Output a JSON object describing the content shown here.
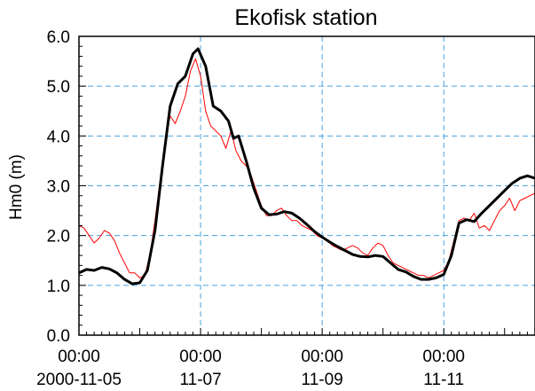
{
  "chart_data": {
    "type": "line",
    "title": "Ekofisk station",
    "ylabel": "Hm0 (m)",
    "xlabel": "",
    "ylim": [
      0,
      6
    ],
    "xlim": [
      "2000-11-05 00:00",
      "2000-11-12 12:00"
    ],
    "y_ticks": [
      "0.0",
      "1.0",
      "2.0",
      "3.0",
      "4.0",
      "5.0",
      "6.0"
    ],
    "x_ticks": [
      {
        "time": "2000-11-05 00:00",
        "line1": "00:00",
        "line2": "2000-11-05"
      },
      {
        "time": "2000-11-07 00:00",
        "line1": "00:00",
        "line2": "11-07"
      },
      {
        "time": "2000-11-09 00:00",
        "line1": "00:00",
        "line2": "11-09"
      },
      {
        "time": "2000-11-11 00:00",
        "line1": "00:00",
        "line2": "11-11"
      }
    ],
    "grid": true,
    "grid_color": "#4aa3df",
    "series": [
      {
        "color": "#ff0000",
        "points": [
          [
            "2000-11-05 00:00",
            2.2
          ],
          [
            "2000-11-05 02:00",
            2.15
          ],
          [
            "2000-11-05 04:00",
            2.0
          ],
          [
            "2000-11-05 06:00",
            1.85
          ],
          [
            "2000-11-05 08:00",
            1.95
          ],
          [
            "2000-11-05 10:00",
            2.1
          ],
          [
            "2000-11-05 12:00",
            2.05
          ],
          [
            "2000-11-05 14:00",
            1.9
          ],
          [
            "2000-11-05 16:00",
            1.65
          ],
          [
            "2000-11-05 18:00",
            1.45
          ],
          [
            "2000-11-05 20:00",
            1.25
          ],
          [
            "2000-11-05 22:00",
            1.25
          ],
          [
            "2000-11-06 00:00",
            1.15
          ],
          [
            "2000-11-06 02:00",
            1.2
          ],
          [
            "2000-11-06 04:00",
            1.6
          ],
          [
            "2000-11-06 06:00",
            2.3
          ],
          [
            "2000-11-06 08:00",
            3.1
          ],
          [
            "2000-11-06 10:00",
            3.9
          ],
          [
            "2000-11-06 12:00",
            4.4
          ],
          [
            "2000-11-06 14:00",
            4.25
          ],
          [
            "2000-11-06 16:00",
            4.5
          ],
          [
            "2000-11-06 18:00",
            4.8
          ],
          [
            "2000-11-06 20:00",
            5.3
          ],
          [
            "2000-11-06 22:00",
            5.55
          ],
          [
            "2000-11-07 00:00",
            5.2
          ],
          [
            "2000-11-07 02:00",
            4.5
          ],
          [
            "2000-11-07 04:00",
            4.2
          ],
          [
            "2000-11-07 06:00",
            4.1
          ],
          [
            "2000-11-07 08:00",
            4.0
          ],
          [
            "2000-11-07 10:00",
            3.75
          ],
          [
            "2000-11-07 12:00",
            4.1
          ],
          [
            "2000-11-07 14:00",
            3.7
          ],
          [
            "2000-11-07 16:00",
            3.5
          ],
          [
            "2000-11-07 18:00",
            3.4
          ],
          [
            "2000-11-07 20:00",
            3.2
          ],
          [
            "2000-11-07 22:00",
            2.9
          ],
          [
            "2000-11-08 00:00",
            2.6
          ],
          [
            "2000-11-08 02:00",
            2.4
          ],
          [
            "2000-11-08 04:00",
            2.4
          ],
          [
            "2000-11-08 06:00",
            2.5
          ],
          [
            "2000-11-08 08:00",
            2.55
          ],
          [
            "2000-11-08 10:00",
            2.4
          ],
          [
            "2000-11-08 12:00",
            2.3
          ],
          [
            "2000-11-08 14:00",
            2.3
          ],
          [
            "2000-11-08 16:00",
            2.2
          ],
          [
            "2000-11-08 18:00",
            2.15
          ],
          [
            "2000-11-08 20:00",
            2.1
          ],
          [
            "2000-11-08 22:00",
            2.0
          ],
          [
            "2000-11-09 00:00",
            1.95
          ],
          [
            "2000-11-09 02:00",
            1.9
          ],
          [
            "2000-11-09 04:00",
            1.8
          ],
          [
            "2000-11-09 06:00",
            1.75
          ],
          [
            "2000-11-09 08:00",
            1.7
          ],
          [
            "2000-11-09 10:00",
            1.75
          ],
          [
            "2000-11-09 12:00",
            1.8
          ],
          [
            "2000-11-09 14:00",
            1.75
          ],
          [
            "2000-11-09 16:00",
            1.65
          ],
          [
            "2000-11-09 18:00",
            1.6
          ],
          [
            "2000-11-09 20:00",
            1.75
          ],
          [
            "2000-11-09 22:00",
            1.85
          ],
          [
            "2000-11-10 00:00",
            1.8
          ],
          [
            "2000-11-10 02:00",
            1.6
          ],
          [
            "2000-11-10 04:00",
            1.45
          ],
          [
            "2000-11-10 06:00",
            1.4
          ],
          [
            "2000-11-10 08:00",
            1.35
          ],
          [
            "2000-11-10 10:00",
            1.3
          ],
          [
            "2000-11-10 12:00",
            1.25
          ],
          [
            "2000-11-10 14:00",
            1.2
          ],
          [
            "2000-11-10 16:00",
            1.2
          ],
          [
            "2000-11-10 18:00",
            1.15
          ],
          [
            "2000-11-10 20:00",
            1.2
          ],
          [
            "2000-11-10 22:00",
            1.25
          ],
          [
            "2000-11-11 00:00",
            1.3
          ],
          [
            "2000-11-11 02:00",
            1.5
          ],
          [
            "2000-11-11 04:00",
            1.9
          ],
          [
            "2000-11-11 06:00",
            2.3
          ],
          [
            "2000-11-11 08:00",
            2.35
          ],
          [
            "2000-11-11 10:00",
            2.3
          ],
          [
            "2000-11-11 12:00",
            2.45
          ],
          [
            "2000-11-11 14:00",
            2.15
          ],
          [
            "2000-11-11 16:00",
            2.2
          ],
          [
            "2000-11-11 18:00",
            2.1
          ],
          [
            "2000-11-11 20:00",
            2.3
          ],
          [
            "2000-11-11 22:00",
            2.5
          ],
          [
            "2000-11-12 00:00",
            2.6
          ],
          [
            "2000-11-12 02:00",
            2.75
          ],
          [
            "2000-11-12 04:00",
            2.5
          ],
          [
            "2000-11-12 06:00",
            2.7
          ],
          [
            "2000-11-12 08:00",
            2.75
          ],
          [
            "2000-11-12 10:00",
            2.8
          ],
          [
            "2000-11-12 12:00",
            2.85
          ]
        ]
      },
      {
        "color": "#000000",
        "points": [
          [
            "2000-11-05 00:00",
            1.25
          ],
          [
            "2000-11-05 03:00",
            1.32
          ],
          [
            "2000-11-05 06:00",
            1.3
          ],
          [
            "2000-11-05 09:00",
            1.36
          ],
          [
            "2000-11-05 12:00",
            1.33
          ],
          [
            "2000-11-05 15:00",
            1.25
          ],
          [
            "2000-11-05 18:00",
            1.12
          ],
          [
            "2000-11-05 21:00",
            1.03
          ],
          [
            "2000-11-06 00:00",
            1.05
          ],
          [
            "2000-11-06 03:00",
            1.3
          ],
          [
            "2000-11-06 06:00",
            2.1
          ],
          [
            "2000-11-06 09:00",
            3.4
          ],
          [
            "2000-11-06 12:00",
            4.6
          ],
          [
            "2000-11-06 15:00",
            5.05
          ],
          [
            "2000-11-06 18:00",
            5.2
          ],
          [
            "2000-11-06 21:00",
            5.65
          ],
          [
            "2000-11-06 23:00",
            5.75
          ],
          [
            "2000-11-07 02:00",
            5.4
          ],
          [
            "2000-11-07 05:00",
            4.6
          ],
          [
            "2000-11-07 08:00",
            4.5
          ],
          [
            "2000-11-07 11:00",
            4.3
          ],
          [
            "2000-11-07 13:00",
            3.95
          ],
          [
            "2000-11-07 15:00",
            4.0
          ],
          [
            "2000-11-07 18:00",
            3.5
          ],
          [
            "2000-11-07 21:00",
            2.95
          ],
          [
            "2000-11-08 00:00",
            2.55
          ],
          [
            "2000-11-08 03:00",
            2.42
          ],
          [
            "2000-11-08 06:00",
            2.43
          ],
          [
            "2000-11-08 09:00",
            2.48
          ],
          [
            "2000-11-08 12:00",
            2.45
          ],
          [
            "2000-11-08 15:00",
            2.35
          ],
          [
            "2000-11-08 18:00",
            2.22
          ],
          [
            "2000-11-08 21:00",
            2.08
          ],
          [
            "2000-11-09 00:00",
            1.97
          ],
          [
            "2000-11-09 03:00",
            1.87
          ],
          [
            "2000-11-09 06:00",
            1.78
          ],
          [
            "2000-11-09 09:00",
            1.7
          ],
          [
            "2000-11-09 12:00",
            1.62
          ],
          [
            "2000-11-09 15:00",
            1.58
          ],
          [
            "2000-11-09 18:00",
            1.57
          ],
          [
            "2000-11-09 21:00",
            1.6
          ],
          [
            "2000-11-10 00:00",
            1.58
          ],
          [
            "2000-11-10 03:00",
            1.45
          ],
          [
            "2000-11-10 06:00",
            1.32
          ],
          [
            "2000-11-10 09:00",
            1.27
          ],
          [
            "2000-11-10 12:00",
            1.18
          ],
          [
            "2000-11-10 15:00",
            1.12
          ],
          [
            "2000-11-10 18:00",
            1.12
          ],
          [
            "2000-11-10 21:00",
            1.15
          ],
          [
            "2000-11-11 00:00",
            1.22
          ],
          [
            "2000-11-11 03:00",
            1.6
          ],
          [
            "2000-11-11 06:00",
            2.25
          ],
          [
            "2000-11-11 09:00",
            2.32
          ],
          [
            "2000-11-11 12:00",
            2.28
          ],
          [
            "2000-11-11 15:00",
            2.45
          ],
          [
            "2000-11-11 18:00",
            2.6
          ],
          [
            "2000-11-11 21:00",
            2.75
          ],
          [
            "2000-11-12 00:00",
            2.9
          ],
          [
            "2000-11-12 03:00",
            3.05
          ],
          [
            "2000-11-12 06:00",
            3.15
          ],
          [
            "2000-11-12 09:00",
            3.2
          ],
          [
            "2000-11-12 12:00",
            3.15
          ]
        ]
      }
    ]
  }
}
